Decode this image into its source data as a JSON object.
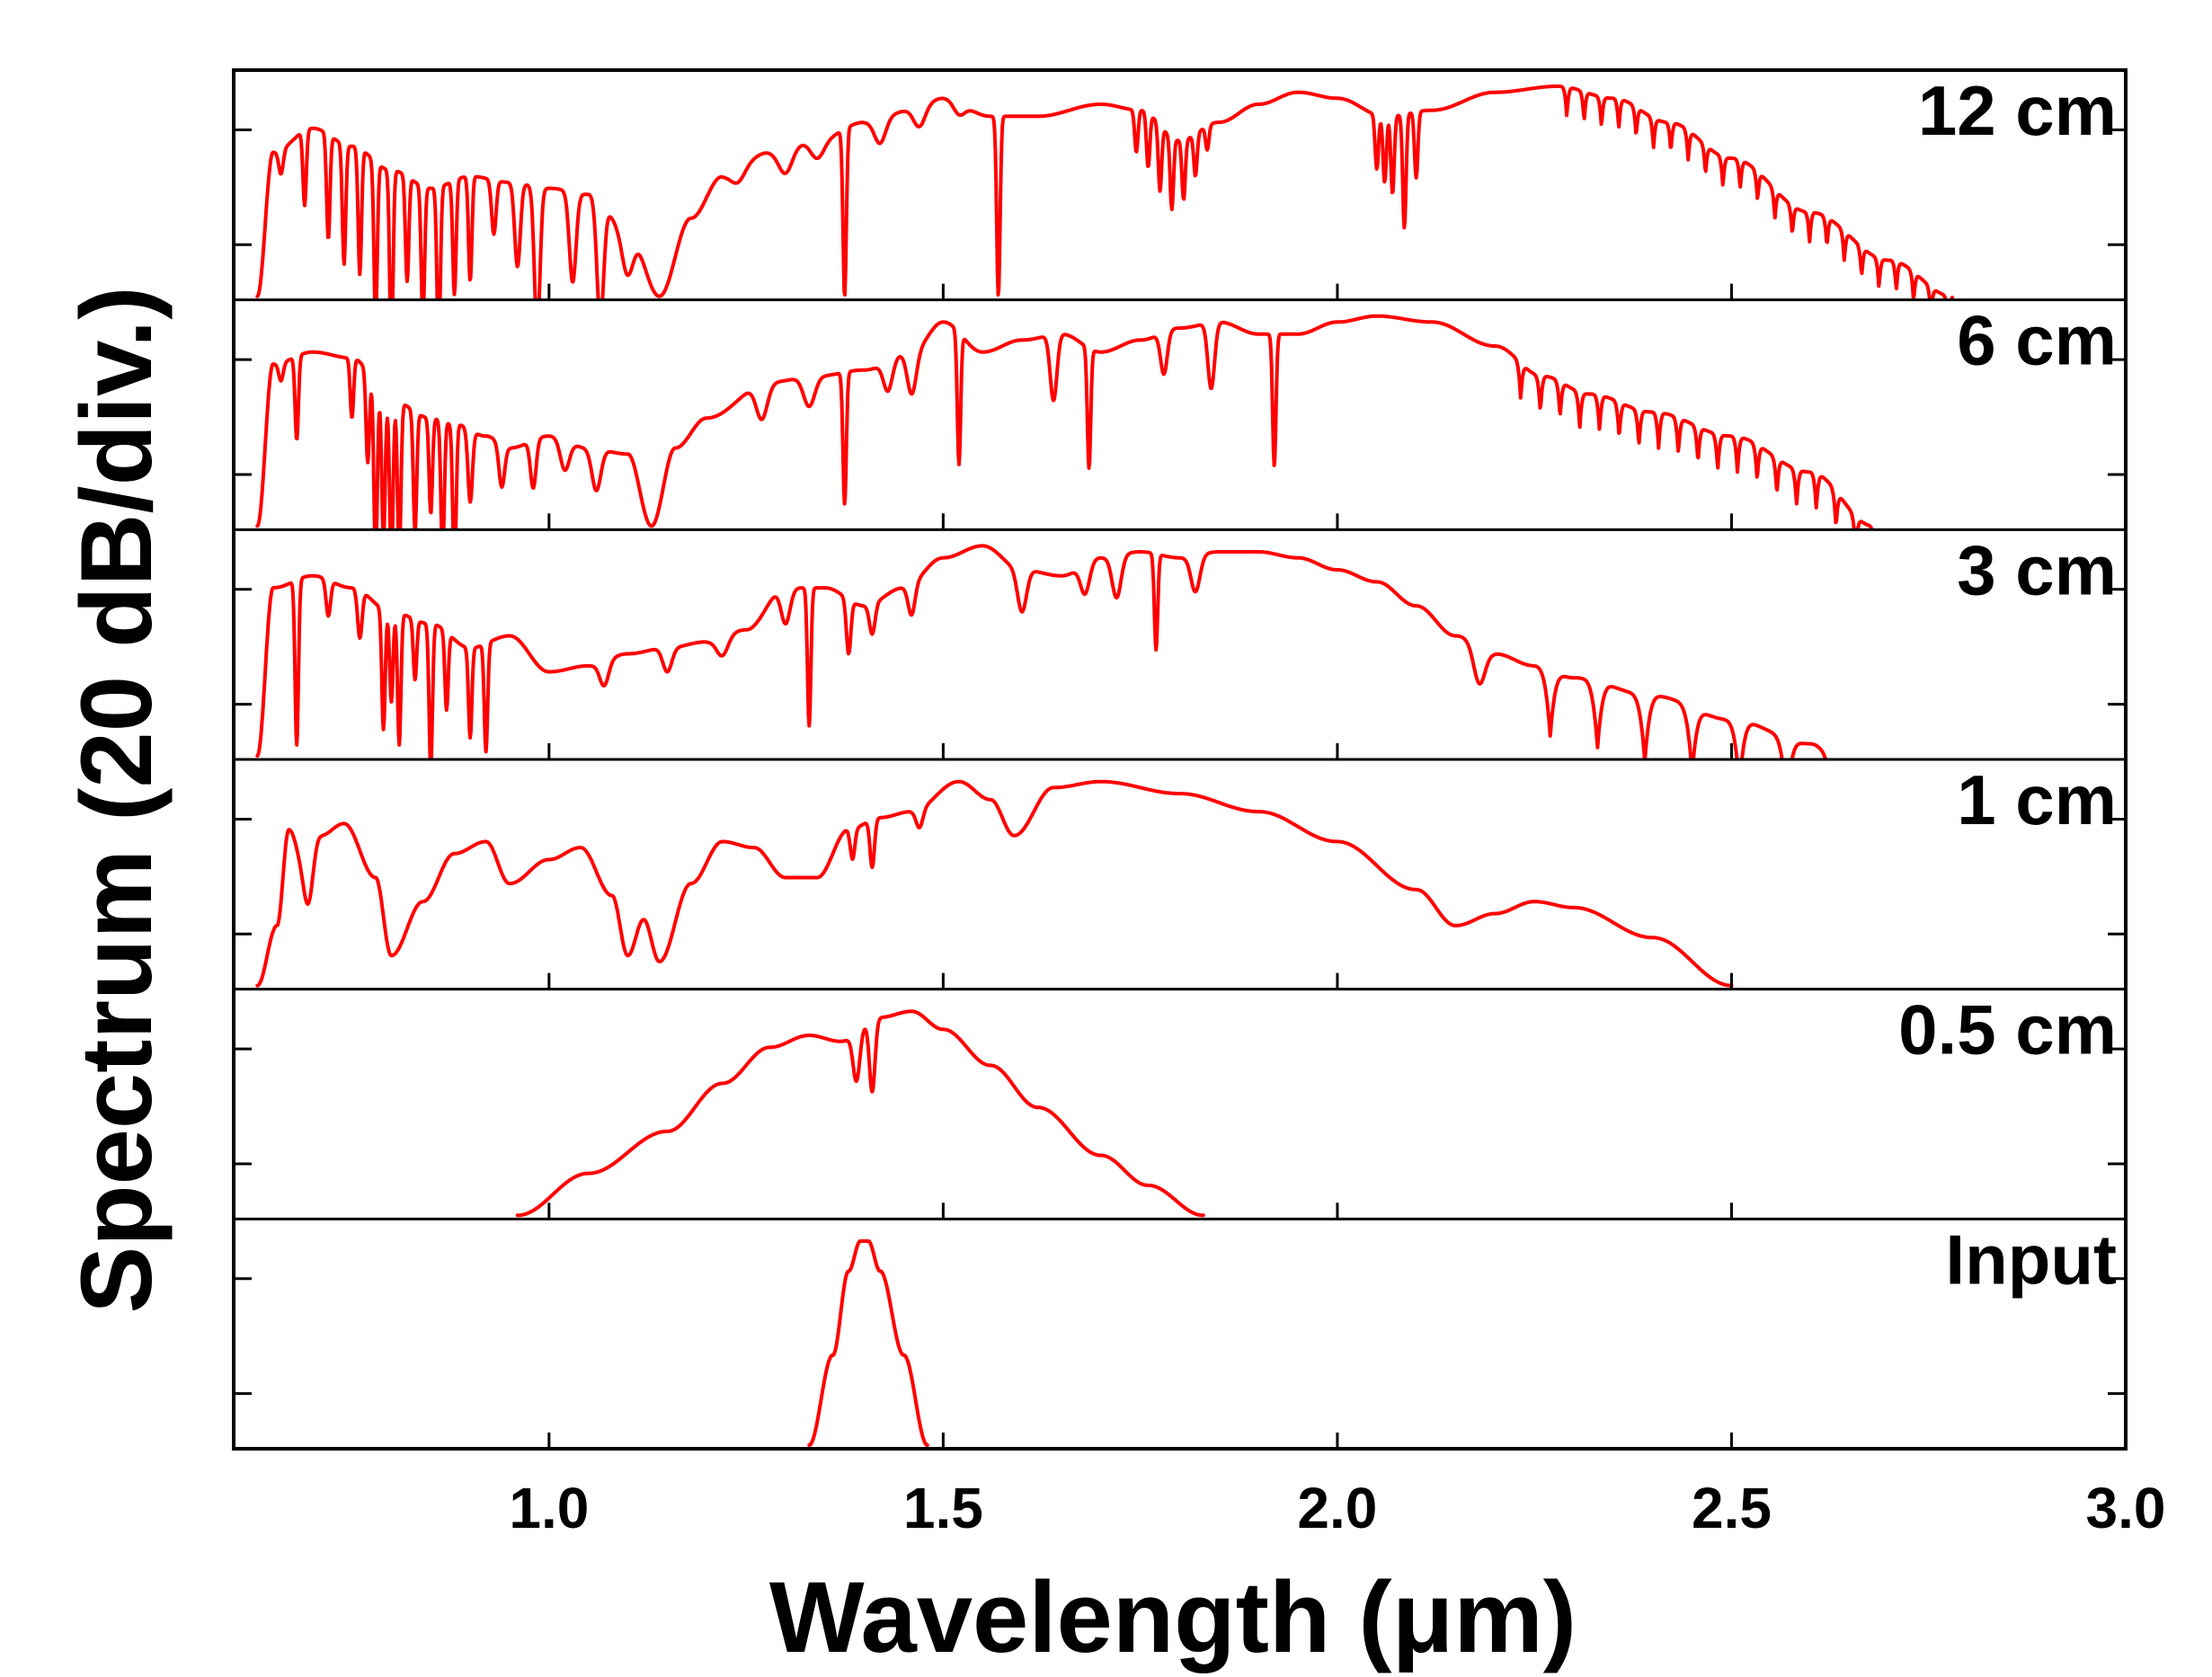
{
  "chart_data": {
    "type": "line",
    "title": "",
    "xlabel": "Wavelength (μm)",
    "ylabel": "Spectrum (20 dB/div.)",
    "xlim": [
      0.6,
      3.0
    ],
    "xticks": [
      1.0,
      1.5,
      2.0,
      2.5,
      3.0
    ],
    "xtick_labels": [
      "1.0",
      "1.5",
      "2.0",
      "2.5",
      "3.0"
    ],
    "y_unit_per_div_dB": 20,
    "panel_ylim_dB": [
      -70,
      0
    ],
    "grid": false,
    "line_color": "#ff0000",
    "series": [
      {
        "name": "12 cm",
        "envelope": [
          [
            0.63,
            -70
          ],
          [
            0.65,
            -22
          ],
          [
            0.7,
            -14
          ],
          [
            0.75,
            -20
          ],
          [
            0.8,
            -28
          ],
          [
            0.85,
            -34
          ],
          [
            0.9,
            -30
          ],
          [
            0.95,
            -32
          ],
          [
            1.0,
            -34
          ],
          [
            1.05,
            -36
          ],
          [
            1.1,
            -48
          ],
          [
            1.14,
            -70
          ],
          [
            1.18,
            -44
          ],
          [
            1.22,
            -30
          ],
          [
            1.28,
            -22
          ],
          [
            1.34,
            -18
          ],
          [
            1.4,
            -12
          ],
          [
            1.46,
            -8
          ],
          [
            1.5,
            -4
          ],
          [
            1.56,
            -10
          ],
          [
            1.62,
            -10
          ],
          [
            1.7,
            -6
          ],
          [
            1.75,
            -8
          ],
          [
            1.8,
            -18
          ],
          [
            1.85,
            -12
          ],
          [
            1.9,
            -6
          ],
          [
            1.95,
            -2
          ],
          [
            2.0,
            -4
          ],
          [
            2.06,
            -10
          ],
          [
            2.12,
            -8
          ],
          [
            2.2,
            -2
          ],
          [
            2.28,
            0
          ],
          [
            2.35,
            -4
          ],
          [
            2.42,
            -12
          ],
          [
            2.5,
            -24
          ],
          [
            2.6,
            -42
          ],
          [
            2.7,
            -58
          ],
          [
            2.78,
            -70
          ]
        ],
        "dips": [
          [
            0.66,
            8,
            0.004
          ],
          [
            0.69,
            25,
            0.003
          ],
          [
            0.72,
            35,
            0.003
          ],
          [
            0.74,
            40,
            0.003
          ],
          [
            0.76,
            42,
            0.003
          ],
          [
            0.78,
            52,
            0.003
          ],
          [
            0.8,
            60,
            0.003
          ],
          [
            0.82,
            35,
            0.003
          ],
          [
            0.84,
            45,
            0.003
          ],
          [
            0.86,
            55,
            0.003
          ],
          [
            0.88,
            38,
            0.003
          ],
          [
            0.9,
            35,
            0.003
          ],
          [
            0.93,
            18,
            0.004
          ],
          [
            0.96,
            28,
            0.005
          ],
          [
            0.985,
            48,
            0.005
          ],
          [
            1.03,
            30,
            0.006
          ],
          [
            1.065,
            40,
            0.006
          ],
          [
            1.1,
            15,
            0.01
          ],
          [
            1.24,
            4,
            0.012
          ],
          [
            1.3,
            8,
            0.012
          ],
          [
            1.34,
            6,
            0.012
          ],
          [
            1.375,
            56,
            0.003
          ],
          [
            1.42,
            8,
            0.01
          ],
          [
            1.47,
            6,
            0.01
          ],
          [
            1.52,
            4,
            0.01
          ],
          [
            1.57,
            60,
            0.003
          ],
          [
            1.745,
            14,
            0.003
          ],
          [
            1.76,
            18,
            0.003
          ],
          [
            1.775,
            22,
            0.003
          ],
          [
            1.79,
            24,
            0.003
          ],
          [
            1.805,
            20,
            0.003
          ],
          [
            1.82,
            14,
            0.003
          ],
          [
            1.835,
            8,
            0.003
          ],
          [
            2.05,
            18,
            0.003
          ],
          [
            2.06,
            22,
            0.003
          ],
          [
            2.07,
            26,
            0.003
          ],
          [
            2.085,
            38,
            0.003
          ],
          [
            2.1,
            22,
            0.003
          ]
        ],
        "ripple_start": 2.28,
        "ripple_period": 0.022,
        "ripple_depth": 10
      },
      {
        "name": "6 cm",
        "envelope": [
          [
            0.63,
            -70
          ],
          [
            0.65,
            -16
          ],
          [
            0.7,
            -12
          ],
          [
            0.75,
            -14
          ],
          [
            0.8,
            -28
          ],
          [
            0.85,
            -34
          ],
          [
            0.88,
            -36
          ],
          [
            0.92,
            -40
          ],
          [
            0.95,
            -44
          ],
          [
            1.0,
            -40
          ],
          [
            1.05,
            -44
          ],
          [
            1.1,
            -46
          ],
          [
            1.13,
            -70
          ],
          [
            1.16,
            -44
          ],
          [
            1.2,
            -34
          ],
          [
            1.28,
            -22
          ],
          [
            1.34,
            -20
          ],
          [
            1.4,
            -18
          ],
          [
            1.46,
            -12
          ],
          [
            1.5,
            -2
          ],
          [
            1.55,
            -12
          ],
          [
            1.6,
            -8
          ],
          [
            1.65,
            -6
          ],
          [
            1.7,
            -12
          ],
          [
            1.75,
            -8
          ],
          [
            1.8,
            -4
          ],
          [
            1.85,
            -2
          ],
          [
            1.9,
            -6
          ],
          [
            1.95,
            -6
          ],
          [
            2.0,
            -2
          ],
          [
            2.05,
            0
          ],
          [
            2.12,
            -2
          ],
          [
            2.2,
            -10
          ],
          [
            2.26,
            -20
          ],
          [
            2.32,
            -26
          ],
          [
            2.4,
            -32
          ],
          [
            2.5,
            -40
          ],
          [
            2.6,
            -52
          ],
          [
            2.68,
            -70
          ]
        ],
        "dips": [
          [
            0.66,
            6,
            0.004
          ],
          [
            0.68,
            28,
            0.003
          ],
          [
            0.75,
            20,
            0.003
          ],
          [
            0.77,
            30,
            0.003
          ],
          [
            0.78,
            58,
            0.003
          ],
          [
            0.79,
            48,
            0.003
          ],
          [
            0.8,
            56,
            0.003
          ],
          [
            0.81,
            52,
            0.003
          ],
          [
            0.83,
            40,
            0.003
          ],
          [
            0.85,
            32,
            0.003
          ],
          [
            0.865,
            45,
            0.003
          ],
          [
            0.88,
            50,
            0.003
          ],
          [
            0.9,
            24,
            0.004
          ],
          [
            0.94,
            14,
            0.005
          ],
          [
            0.98,
            16,
            0.005
          ],
          [
            1.02,
            10,
            0.008
          ],
          [
            1.06,
            14,
            0.008
          ],
          [
            1.27,
            12,
            0.01
          ],
          [
            1.33,
            10,
            0.01
          ],
          [
            1.375,
            44,
            0.003
          ],
          [
            1.43,
            10,
            0.008
          ],
          [
            1.46,
            14,
            0.008
          ],
          [
            1.52,
            44,
            0.003
          ],
          [
            1.64,
            22,
            0.006
          ],
          [
            1.685,
            40,
            0.003
          ],
          [
            1.78,
            14,
            0.006
          ],
          [
            1.84,
            22,
            0.006
          ],
          [
            1.92,
            44,
            0.003
          ]
        ],
        "ripple_start": 2.22,
        "ripple_period": 0.025,
        "ripple_depth": 12
      },
      {
        "name": "3 cm",
        "envelope": [
          [
            0.63,
            -70
          ],
          [
            0.65,
            -14
          ],
          [
            0.7,
            -10
          ],
          [
            0.75,
            -14
          ],
          [
            0.8,
            -22
          ],
          [
            0.85,
            -26
          ],
          [
            0.9,
            -34
          ],
          [
            0.95,
            -30
          ],
          [
            1.0,
            -42
          ],
          [
            1.05,
            -40
          ],
          [
            1.1,
            -36
          ],
          [
            1.15,
            -34
          ],
          [
            1.2,
            -32
          ],
          [
            1.25,
            -28
          ],
          [
            1.3,
            -14
          ],
          [
            1.35,
            -14
          ],
          [
            1.4,
            -20
          ],
          [
            1.45,
            -14
          ],
          [
            1.5,
            -4
          ],
          [
            1.55,
            0
          ],
          [
            1.6,
            -8
          ],
          [
            1.65,
            -10
          ],
          [
            1.7,
            -4
          ],
          [
            1.75,
            -2
          ],
          [
            1.8,
            -4
          ],
          [
            1.85,
            -2
          ],
          [
            1.9,
            -2
          ],
          [
            1.95,
            -4
          ],
          [
            2.0,
            -8
          ],
          [
            2.05,
            -12
          ],
          [
            2.1,
            -20
          ],
          [
            2.15,
            -30
          ],
          [
            2.2,
            -36
          ],
          [
            2.25,
            -40
          ],
          [
            2.3,
            -44
          ],
          [
            2.4,
            -50
          ],
          [
            2.5,
            -58
          ],
          [
            2.6,
            -66
          ],
          [
            2.63,
            -70
          ]
        ],
        "dips": [
          [
            0.68,
            55,
            0.003
          ],
          [
            0.72,
            12,
            0.004
          ],
          [
            0.76,
            16,
            0.004
          ],
          [
            0.79,
            40,
            0.003
          ],
          [
            0.8,
            30,
            0.003
          ],
          [
            0.81,
            44,
            0.003
          ],
          [
            0.83,
            20,
            0.003
          ],
          [
            0.85,
            48,
            0.003
          ],
          [
            0.87,
            26,
            0.003
          ],
          [
            0.9,
            30,
            0.003
          ],
          [
            0.92,
            36,
            0.003
          ],
          [
            1.07,
            8,
            0.008
          ],
          [
            1.15,
            8,
            0.008
          ],
          [
            1.22,
            6,
            0.01
          ],
          [
            1.3,
            12,
            0.008
          ],
          [
            1.33,
            46,
            0.003
          ],
          [
            1.38,
            18,
            0.004
          ],
          [
            1.41,
            10,
            0.005
          ],
          [
            1.46,
            10,
            0.006
          ],
          [
            1.6,
            14,
            0.008
          ],
          [
            1.68,
            10,
            0.008
          ],
          [
            1.72,
            14,
            0.008
          ],
          [
            1.77,
            32,
            0.003
          ],
          [
            1.82,
            12,
            0.008
          ],
          [
            2.18,
            12,
            0.01
          ]
        ],
        "ripple_start": 2.24,
        "ripple_period": 0.06,
        "ripple_depth": 22
      },
      {
        "name": "1 cm",
        "envelope": [
          [
            0.63,
            -70
          ],
          [
            0.655,
            -50
          ],
          [
            0.67,
            -18
          ],
          [
            0.69,
            -30
          ],
          [
            0.71,
            -20
          ],
          [
            0.74,
            -16
          ],
          [
            0.78,
            -34
          ],
          [
            0.8,
            -60
          ],
          [
            0.84,
            -42
          ],
          [
            0.88,
            -26
          ],
          [
            0.92,
            -22
          ],
          [
            0.95,
            -36
          ],
          [
            1.0,
            -28
          ],
          [
            1.04,
            -24
          ],
          [
            1.08,
            -40
          ],
          [
            1.1,
            -60
          ],
          [
            1.12,
            -48
          ],
          [
            1.14,
            -62
          ],
          [
            1.18,
            -36
          ],
          [
            1.22,
            -22
          ],
          [
            1.26,
            -24
          ],
          [
            1.3,
            -34
          ],
          [
            1.34,
            -34
          ],
          [
            1.38,
            -18
          ],
          [
            1.42,
            -14
          ],
          [
            1.46,
            -12
          ],
          [
            1.52,
            -2
          ],
          [
            1.56,
            -8
          ],
          [
            1.59,
            -20
          ],
          [
            1.64,
            -4
          ],
          [
            1.7,
            -2
          ],
          [
            1.8,
            -6
          ],
          [
            1.9,
            -12
          ],
          [
            2.0,
            -22
          ],
          [
            2.1,
            -38
          ],
          [
            2.15,
            -50
          ],
          [
            2.2,
            -46
          ],
          [
            2.25,
            -42
          ],
          [
            2.3,
            -44
          ],
          [
            2.4,
            -54
          ],
          [
            2.5,
            -70
          ]
        ],
        "dips": [
          [
            0.695,
            14,
            0.008
          ],
          [
            1.385,
            10,
            0.004
          ],
          [
            1.41,
            16,
            0.004
          ],
          [
            1.47,
            6,
            0.006
          ]
        ],
        "ripple_start": null,
        "ripple_period": 0,
        "ripple_depth": 0
      },
      {
        "name": "0.5 cm",
        "envelope": [
          [
            0.96,
            -70
          ],
          [
            1.05,
            -56
          ],
          [
            1.15,
            -42
          ],
          [
            1.22,
            -26
          ],
          [
            1.28,
            -14
          ],
          [
            1.33,
            -10
          ],
          [
            1.37,
            -12
          ],
          [
            1.42,
            -4
          ],
          [
            1.46,
            -2
          ],
          [
            1.5,
            -8
          ],
          [
            1.56,
            -20
          ],
          [
            1.62,
            -34
          ],
          [
            1.7,
            -50
          ],
          [
            1.76,
            -60
          ],
          [
            1.83,
            -70
          ]
        ],
        "dips": [
          [
            1.39,
            16,
            0.006
          ],
          [
            1.41,
            24,
            0.005
          ]
        ],
        "ripple_start": null,
        "ripple_period": 0,
        "ripple_depth": 0
      },
      {
        "name": "Input",
        "envelope": [
          [
            1.33,
            -70
          ],
          [
            1.36,
            -40
          ],
          [
            1.38,
            -12
          ],
          [
            1.395,
            -2
          ],
          [
            1.405,
            -2
          ],
          [
            1.42,
            -12
          ],
          [
            1.45,
            -40
          ],
          [
            1.48,
            -70
          ]
        ],
        "dips": [],
        "ripple_start": null,
        "ripple_period": 0,
        "ripple_depth": 0
      }
    ]
  }
}
